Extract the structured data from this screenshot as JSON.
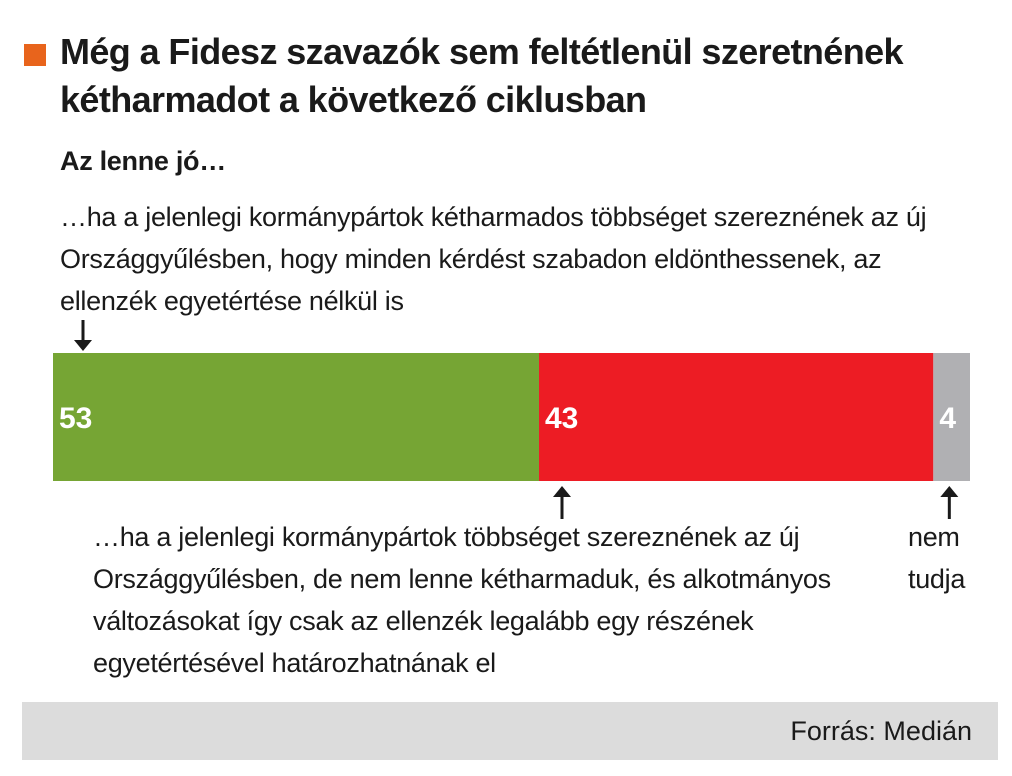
{
  "title": "Még a Fidesz szavazók sem feltétlenül szeretnének kétharmadot a következő ciklusban",
  "subtitle": "Az lenne jó…",
  "source": "Forrás: Medián",
  "colors": {
    "accent": "#e8641c",
    "green": "#76a534",
    "red": "#ed1c24",
    "gray": "#b0b0b3"
  },
  "chart_data": {
    "type": "bar",
    "orientation": "horizontal-stacked",
    "series": [
      {
        "label_text": "…ha a jelenlegi kormánypártok kétharmados többséget szereznének az új Országgyűlésben, hogy minden kérdést szabadon eldönthessenek, az ellenzék egyetértése nélkül is",
        "value": 53,
        "color": "#76a534"
      },
      {
        "label_text": "…ha a jelenlegi kormánypártok többséget szereznének az új Országgyűlésben, de nem lenne kétharmaduk, és alkotmányos változásokat így csak az ellenzék legalább egy részének egyetértésével határozhatnának el",
        "value": 43,
        "color": "#ed1c24"
      },
      {
        "label_text": "nem tudja",
        "value": 4,
        "color": "#b0b0b3"
      }
    ],
    "total": 100
  }
}
